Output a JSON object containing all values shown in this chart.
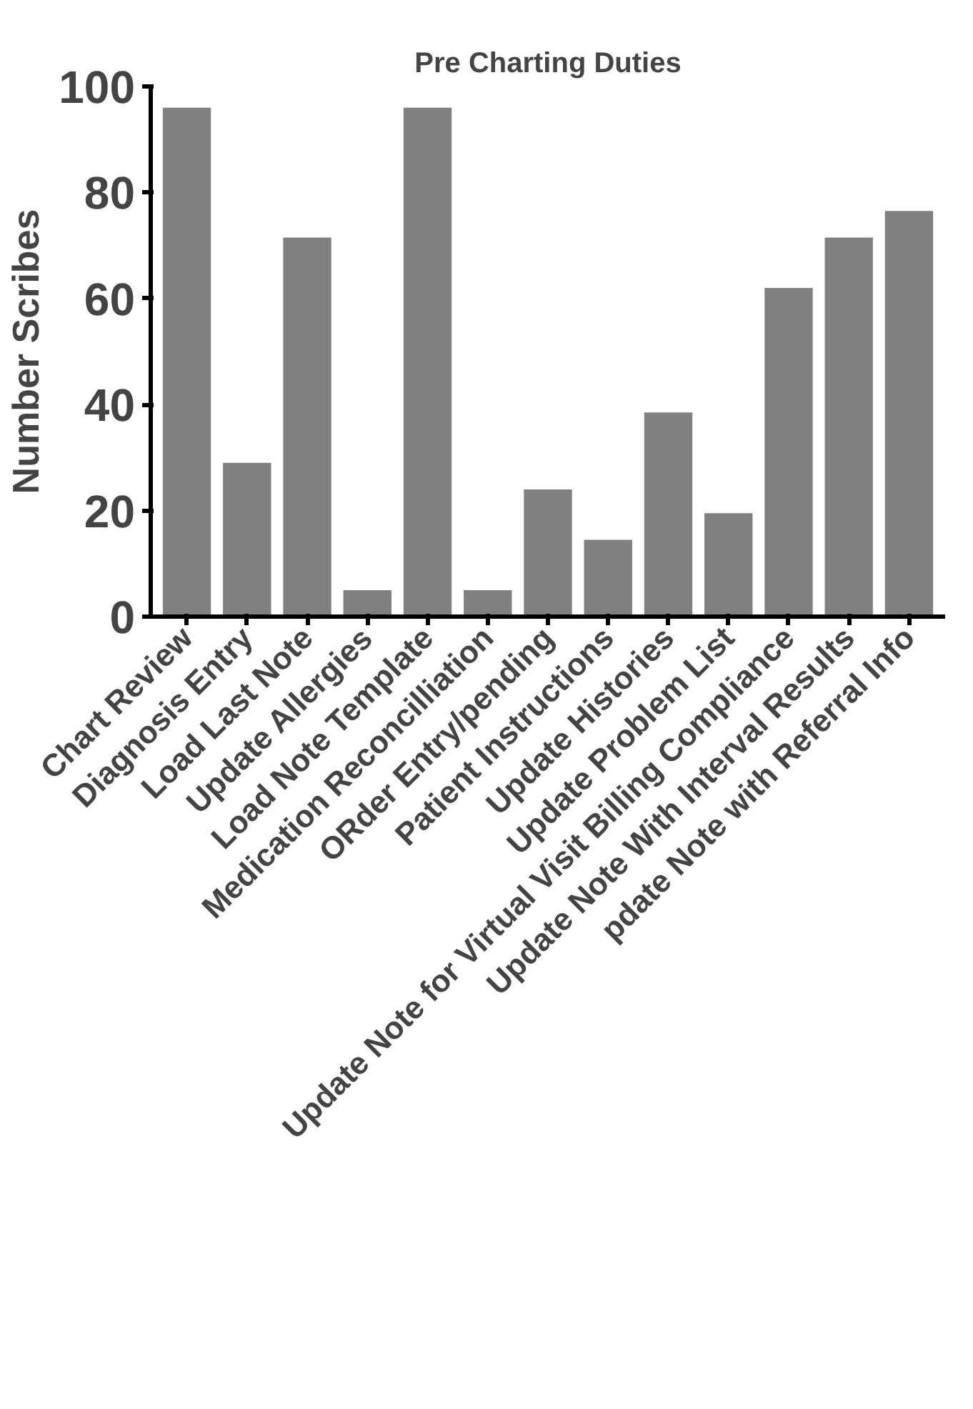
{
  "chart_data": {
    "type": "bar",
    "title": "Pre Charting Duties",
    "ylabel": "Number Scribes",
    "categories": [
      "Chart Review",
      "Diagnosis Entry",
      "Load Last Note",
      "Update Allergies",
      "Load Note Template",
      "Medication Reconcilliation",
      "ORder Entry/pending",
      "Patient Instructions",
      "Update Histories",
      "Update Problem List",
      "Update Note for Virtual Visit Billing Compliance",
      "Update Note With Interval Results",
      "pdate Note with Referral Info"
    ],
    "values": [
      96,
      29,
      71.5,
      5,
      96,
      5,
      24,
      14.5,
      38.5,
      19.5,
      62,
      71.5,
      76.5
    ],
    "color": "#808080",
    "ylim": [
      0,
      100
    ],
    "yticks": [
      0,
      20,
      40,
      60,
      80,
      100
    ],
    "grid": false
  }
}
